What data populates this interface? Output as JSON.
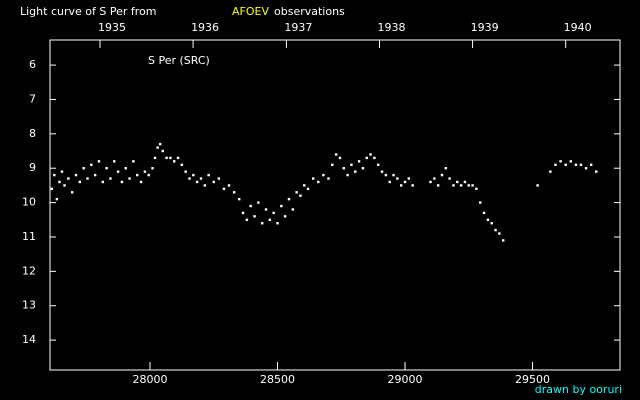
{
  "chart_data": {
    "type": "scatter",
    "title": "Light curve of S Per from",
    "title_highlight": "AFOEV",
    "title_suffix": "observations",
    "annotation": "S Per (SRC)",
    "credit": "drawn by ooruri",
    "color": "#ffffff",
    "y_inverted": true,
    "xlim": [
      27608,
      29843
    ],
    "ylim": [
      5.27,
      14.87
    ],
    "xticks": [
      28000,
      28500,
      29000,
      29500
    ],
    "yticks": [
      6,
      7,
      8,
      9,
      10,
      11,
      12,
      13,
      14
    ],
    "x2ticks": [
      {
        "value": 27804,
        "label": "1935"
      },
      {
        "value": 28169,
        "label": "1936"
      },
      {
        "value": 28535,
        "label": "1937"
      },
      {
        "value": 28900,
        "label": "1938"
      },
      {
        "value": 29265,
        "label": "1939"
      },
      {
        "value": 29630,
        "label": "1940"
      }
    ],
    "x": [
      27615,
      27625,
      27635,
      27645,
      27655,
      27665,
      27680,
      27695,
      27710,
      27725,
      27740,
      27755,
      27770,
      27785,
      27800,
      27815,
      27830,
      27845,
      27860,
      27875,
      27890,
      27905,
      27920,
      27935,
      27950,
      27965,
      27980,
      27995,
      28010,
      28020,
      28030,
      28040,
      28050,
      28065,
      28080,
      28095,
      28110,
      28125,
      28140,
      28155,
      28170,
      28185,
      28200,
      28215,
      28230,
      28250,
      28270,
      28290,
      28310,
      28330,
      28350,
      28365,
      28380,
      28395,
      28410,
      28425,
      28440,
      28455,
      28470,
      28485,
      28500,
      28515,
      28530,
      28545,
      28560,
      28575,
      28590,
      28605,
      28620,
      28640,
      28660,
      28680,
      28700,
      28715,
      28730,
      28745,
      28760,
      28775,
      28790,
      28805,
      28820,
      28835,
      28850,
      28865,
      28880,
      28895,
      28910,
      28925,
      28940,
      28955,
      28970,
      28985,
      29000,
      29015,
      29030,
      29100,
      29115,
      29130,
      29145,
      29160,
      29175,
      29190,
      29205,
      29220,
      29235,
      29250,
      29265,
      29280,
      29295,
      29310,
      29325,
      29340,
      29355,
      29370,
      29385,
      29520,
      29570,
      29590,
      29610,
      29630,
      29650,
      29670,
      29690,
      29710,
      29730,
      29750
    ],
    "values": [
      9.6,
      9.2,
      9.9,
      9.4,
      9.1,
      9.5,
      9.3,
      9.7,
      9.2,
      9.4,
      9.0,
      9.3,
      8.9,
      9.2,
      8.8,
      9.4,
      9.0,
      9.3,
      8.8,
      9.1,
      9.4,
      9.0,
      9.3,
      8.8,
      9.2,
      9.4,
      9.1,
      9.2,
      9.0,
      8.7,
      8.4,
      8.3,
      8.5,
      8.7,
      8.7,
      8.8,
      8.7,
      8.9,
      9.1,
      9.3,
      9.2,
      9.4,
      9.3,
      9.5,
      9.2,
      9.4,
      9.3,
      9.6,
      9.5,
      9.7,
      9.9,
      10.3,
      10.5,
      10.1,
      10.4,
      10.0,
      10.6,
      10.2,
      10.5,
      10.3,
      10.6,
      10.1,
      10.4,
      9.9,
      10.2,
      9.7,
      9.8,
      9.5,
      9.6,
      9.3,
      9.4,
      9.2,
      9.3,
      8.9,
      8.6,
      8.7,
      9.0,
      9.2,
      8.9,
      9.1,
      8.8,
      9.0,
      8.7,
      8.6,
      8.7,
      8.9,
      9.1,
      9.2,
      9.4,
      9.2,
      9.3,
      9.5,
      9.4,
      9.3,
      9.5,
      9.4,
      9.3,
      9.5,
      9.2,
      9.0,
      9.3,
      9.5,
      9.4,
      9.5,
      9.4,
      9.5,
      9.5,
      9.6,
      10.0,
      10.3,
      10.5,
      10.6,
      10.8,
      10.9,
      11.1,
      9.5,
      9.1,
      8.9,
      8.8,
      8.9,
      8.8,
      8.9,
      8.9,
      9.0,
      8.9,
      9.1
    ]
  }
}
